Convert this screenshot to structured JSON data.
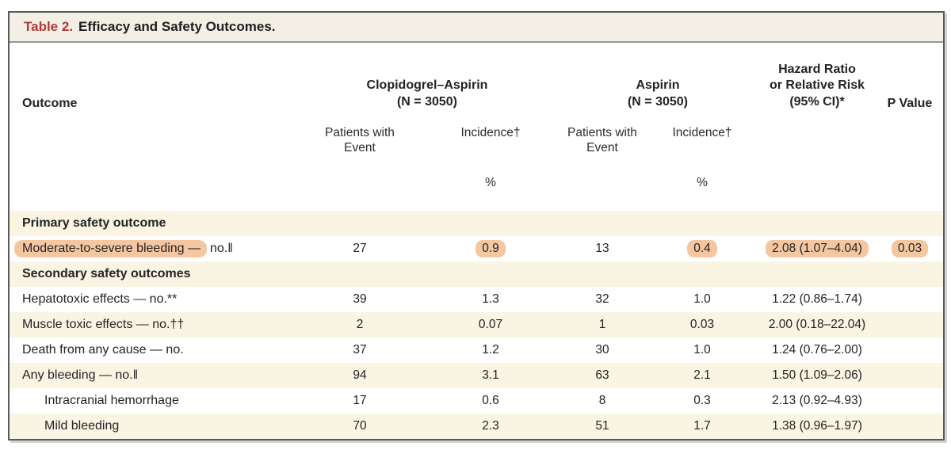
{
  "title": {
    "label": "Table 2.",
    "text": "Efficacy and Safety Outcomes."
  },
  "header": {
    "outcome": "Outcome",
    "groups": [
      {
        "name": "Clopidogrel–Aspirin",
        "n": "(N = 3050)"
      },
      {
        "name": "Aspirin",
        "n": "(N = 3050)"
      }
    ],
    "sub": {
      "patients": "Patients with Event",
      "incidence": "Incidence†",
      "unit": "%"
    },
    "hazard": {
      "line1": "Hazard Ratio",
      "line2": "or Relative Risk",
      "line3": "(95% CI)*"
    },
    "pvalue": "P Value"
  },
  "rows": [
    {
      "type": "section",
      "label": "Primary safety outcome"
    },
    {
      "type": "data",
      "label_highlight": "Moderate-to-severe bleeding —",
      "label_rest": "no.‖",
      "patients1": "27",
      "incidence1": "0.9",
      "patients2": "13",
      "incidence2": "0.4",
      "hazard": "2.08 (1.07–4.04)",
      "pvalue": "0.03",
      "highlighted": [
        "label",
        "incidence1",
        "incidence2",
        "hazard",
        "pvalue"
      ]
    },
    {
      "type": "section",
      "label": "Secondary safety outcomes"
    },
    {
      "type": "data",
      "label": "Hepatotoxic effects — no.**",
      "patients1": "39",
      "incidence1": "1.3",
      "patients2": "32",
      "incidence2": "1.0",
      "hazard": "1.22 (0.86–1.74)",
      "pvalue": ""
    },
    {
      "type": "data",
      "label": "Muscle toxic effects — no.††",
      "patients1": "2",
      "incidence1": "0.07",
      "patients2": "1",
      "incidence2": "0.03",
      "hazard": "2.00 (0.18–22.04)",
      "pvalue": ""
    },
    {
      "type": "data",
      "label": "Death from any cause — no.",
      "patients1": "37",
      "incidence1": "1.2",
      "patients2": "30",
      "incidence2": "1.0",
      "hazard": "1.24 (0.76–2.00)",
      "pvalue": ""
    },
    {
      "type": "data",
      "label": "Any bleeding — no.‖",
      "patients1": "94",
      "incidence1": "3.1",
      "patients2": "63",
      "incidence2": "2.1",
      "hazard": "1.50 (1.09–2.06)",
      "pvalue": ""
    },
    {
      "type": "data",
      "indent": true,
      "label": "Intracranial hemorrhage",
      "patients1": "17",
      "incidence1": "0.6",
      "patients2": "8",
      "incidence2": "0.3",
      "hazard": "2.13 (0.92–4.93)",
      "pvalue": ""
    },
    {
      "type": "data",
      "indent": true,
      "label": "Mild bleeding",
      "patients1": "70",
      "incidence1": "2.3",
      "patients2": "51",
      "incidence2": "1.7",
      "hazard": "1.38 (0.96–1.97)",
      "pvalue": ""
    }
  ],
  "colors": {
    "highlight": "#f5c7a1",
    "shaded_row": "#faf4e3",
    "title_red": "#b0393b",
    "border": "#59595b",
    "title_bar_bg": "#f3efe4"
  }
}
